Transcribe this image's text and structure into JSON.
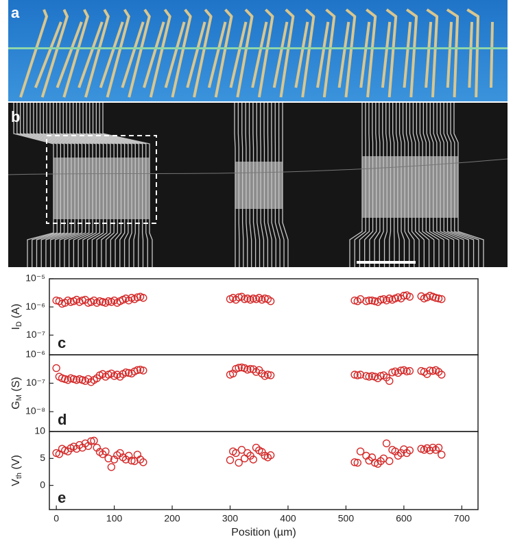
{
  "panel_labels": [
    "a",
    "b"
  ],
  "chart_data": [
    {
      "type": "scatter",
      "annotation": "c",
      "ylabel": [
        "I",
        "D",
        " (A)"
      ],
      "yscale": "log",
      "color": "#d42a2a",
      "xlim": [
        -12,
        728
      ],
      "ylim": [
        2e-08,
        1e-05
      ],
      "yticks": [
        {
          "value": 1e-05,
          "label": "10⁻⁵"
        },
        {
          "value": 1e-06,
          "label": "10⁻⁶"
        },
        {
          "value": 1e-07,
          "label": "10⁻⁷"
        }
      ],
      "x": [
        0,
        5,
        10,
        15,
        20,
        25,
        30,
        35,
        40,
        45,
        50,
        55,
        60,
        65,
        70,
        75,
        80,
        85,
        90,
        95,
        100,
        105,
        110,
        115,
        120,
        125,
        130,
        135,
        140,
        145,
        150,
        300,
        305,
        310,
        315,
        320,
        325,
        330,
        335,
        340,
        345,
        350,
        355,
        360,
        365,
        370,
        515,
        520,
        525,
        535,
        540,
        545,
        550,
        555,
        560,
        565,
        570,
        575,
        580,
        585,
        590,
        595,
        600,
        605,
        610,
        630,
        635,
        640,
        645,
        650,
        655,
        660,
        665
      ],
      "values": [
        1.7e-06,
        1.6e-06,
        1.3e-06,
        1.4e-06,
        1.7e-06,
        1.5e-06,
        1.6e-06,
        1.8e-06,
        1.5e-06,
        1.7e-06,
        1.8e-06,
        1.4e-06,
        1.5e-06,
        1.7e-06,
        1.4e-06,
        1.6e-06,
        1.5e-06,
        1.4e-06,
        1.6e-06,
        1.5e-06,
        1.7e-06,
        1.4e-06,
        1.6e-06,
        1.8e-06,
        2e-06,
        1.7e-06,
        2.1e-06,
        1.9e-06,
        2.2e-06,
        2.3e-06,
        2.1e-06,
        1.9e-06,
        2.1e-06,
        1.8e-06,
        2.2e-06,
        2.3e-06,
        1.9e-06,
        2e-06,
        1.8e-06,
        2e-06,
        1.9e-06,
        2.1e-06,
        1.8e-06,
        2e-06,
        1.9e-06,
        1.6e-06,
        1.7e-06,
        1.6e-06,
        1.9e-06,
        1.6e-06,
        1.7e-06,
        1.7e-06,
        1.6e-06,
        1.5e-06,
        1.8e-06,
        1.9e-06,
        1.7e-06,
        2e-06,
        1.8e-06,
        2e-06,
        2.2e-06,
        2e-06,
        2.5e-06,
        2.6e-06,
        2.3e-06,
        2.4e-06,
        2e-06,
        2.2e-06,
        2.5e-06,
        2.3e-06,
        2.1e-06,
        2e-06,
        1.9e-06
      ]
    },
    {
      "type": "scatter",
      "annotation": "d",
      "ylabel": [
        "G",
        "M",
        " (S)"
      ],
      "yscale": "log",
      "color": "#d42a2a",
      "xlim": [
        -12,
        728
      ],
      "ylim": [
        2e-09,
        1e-06
      ],
      "yticks": [
        {
          "value": 1e-06,
          "label": "10⁻⁶"
        },
        {
          "value": 1e-07,
          "label": "10⁻⁷"
        },
        {
          "value": 1e-08,
          "label": "10⁻⁸"
        }
      ],
      "x": [
        0,
        5,
        10,
        15,
        20,
        25,
        30,
        35,
        40,
        45,
        50,
        55,
        60,
        65,
        70,
        75,
        80,
        85,
        90,
        95,
        100,
        105,
        110,
        115,
        120,
        125,
        130,
        135,
        140,
        145,
        150,
        300,
        305,
        310,
        315,
        320,
        325,
        330,
        335,
        340,
        345,
        350,
        355,
        360,
        365,
        370,
        515,
        520,
        525,
        535,
        540,
        545,
        550,
        555,
        560,
        565,
        570,
        575,
        580,
        585,
        590,
        595,
        600,
        605,
        610,
        630,
        635,
        640,
        645,
        650,
        655,
        660,
        665
      ],
      "values": [
        3.4e-07,
        1.7e-07,
        1.5e-07,
        1.4e-07,
        1.3e-07,
        1.5e-07,
        1.4e-07,
        1.3e-07,
        1.4e-07,
        1.3e-07,
        1.2e-07,
        1.4e-07,
        1.1e-07,
        1.3e-07,
        1.5e-07,
        1.9e-07,
        2.1e-07,
        1.7e-07,
        2e-07,
        2.2e-07,
        1.8e-07,
        2e-07,
        1.7e-07,
        2.1e-07,
        2.4e-07,
        2.3e-07,
        2.2e-07,
        2.6e-07,
        2.9e-07,
        3e-07,
        2.8e-07,
        2e-07,
        2.2e-07,
        3.2e-07,
        3.5e-07,
        3.6e-07,
        3.4e-07,
        3e-07,
        3.2e-07,
        3.1e-07,
        2.5e-07,
        2.9e-07,
        2.2e-07,
        1.8e-07,
        2e-07,
        1.9e-07,
        2e-07,
        1.9e-07,
        2e-07,
        1.8e-07,
        1.7e-07,
        1.8e-07,
        1.7e-07,
        1.5e-07,
        1.8e-07,
        1.9e-07,
        1.6e-07,
        1.2e-07,
        2.4e-07,
        2.6e-07,
        2.3e-07,
        2.8e-07,
        2.9e-07,
        2.6e-07,
        2.7e-07,
        2.7e-07,
        2.5e-07,
        2.1e-07,
        2.8e-07,
        2.7e-07,
        2.9e-07,
        2.5e-07,
        2e-07
      ]
    },
    {
      "type": "scatter",
      "annotation": "e",
      "ylabel": [
        "V",
        "th",
        " (V)"
      ],
      "color": "#d42a2a",
      "xlabel": "Position (µm)",
      "xlim": [
        -12,
        728
      ],
      "ylim": [
        -4.5,
        10
      ],
      "xticks": [
        0,
        100,
        200,
        300,
        400,
        500,
        600,
        700
      ],
      "yticks": [
        10,
        5,
        0
      ],
      "x": [
        0,
        5,
        10,
        15,
        20,
        25,
        30,
        35,
        40,
        45,
        50,
        55,
        60,
        65,
        70,
        75,
        80,
        85,
        90,
        95,
        100,
        105,
        110,
        115,
        120,
        125,
        130,
        135,
        140,
        145,
        150,
        300,
        305,
        310,
        315,
        320,
        325,
        330,
        335,
        340,
        345,
        350,
        355,
        360,
        365,
        370,
        515,
        520,
        525,
        535,
        540,
        545,
        550,
        555,
        560,
        565,
        570,
        575,
        580,
        585,
        590,
        595,
        600,
        605,
        610,
        630,
        635,
        640,
        645,
        650,
        655,
        660,
        665
      ],
      "values": [
        6.0,
        5.8,
        6.8,
        6.5,
        6.3,
        6.9,
        7.2,
        6.8,
        7.5,
        7.0,
        7.8,
        7.3,
        8.2,
        8.3,
        7.0,
        6.2,
        5.8,
        6.3,
        5.0,
        3.4,
        4.8,
        5.6,
        6.0,
        5.2,
        4.8,
        5.5,
        4.6,
        4.5,
        5.7,
        4.8,
        4.3,
        4.7,
        6.3,
        6.0,
        4.2,
        6.6,
        5.0,
        6.0,
        5.5,
        4.8,
        7.0,
        6.5,
        6.2,
        5.5,
        5.2,
        5.6,
        4.3,
        4.2,
        6.3,
        5.5,
        4.6,
        5.2,
        4.2,
        4.0,
        4.5,
        5.0,
        7.8,
        4.5,
        6.6,
        6.3,
        5.5,
        6.0,
        6.7,
        6.0,
        6.5,
        6.8,
        6.6,
        6.9,
        6.5,
        7.0,
        6.6,
        7.0,
        5.7
      ]
    }
  ]
}
